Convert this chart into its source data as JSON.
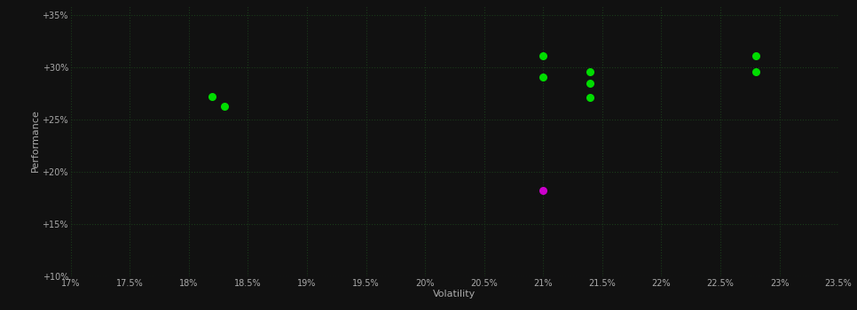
{
  "background_color": "#111111",
  "plot_bg_color": "#111111",
  "grid_color": "#1a3a1a",
  "text_color": "#aaaaaa",
  "xlabel": "Volatility",
  "ylabel": "Performance",
  "xlim": [
    0.17,
    0.235
  ],
  "ylim": [
    0.1,
    0.36
  ],
  "xticks": [
    0.17,
    0.175,
    0.18,
    0.185,
    0.19,
    0.195,
    0.2,
    0.205,
    0.21,
    0.215,
    0.22,
    0.225,
    0.23,
    0.235
  ],
  "yticks": [
    0.1,
    0.15,
    0.2,
    0.25,
    0.3,
    0.35
  ],
  "xtick_labels": [
    "17%",
    "17.5%",
    "18%",
    "18.5%",
    "19%",
    "19.5%",
    "20%",
    "20.5%",
    "21%",
    "21.5%",
    "22%",
    "22.5%",
    "23%",
    "23.5%"
  ],
  "ytick_labels": [
    "+10%",
    "+15%",
    "+20%",
    "+25%",
    "+30%",
    "+35%"
  ],
  "green_points": [
    [
      0.182,
      0.272
    ],
    [
      0.183,
      0.263
    ],
    [
      0.21,
      0.311
    ],
    [
      0.21,
      0.291
    ],
    [
      0.214,
      0.296
    ],
    [
      0.214,
      0.285
    ],
    [
      0.214,
      0.271
    ],
    [
      0.228,
      0.311
    ],
    [
      0.228,
      0.296
    ]
  ],
  "magenta_points": [
    [
      0.21,
      0.182
    ]
  ],
  "point_size": 30,
  "green_color": "#00dd00",
  "magenta_color": "#cc00cc",
  "figsize": [
    9.66,
    3.5
  ],
  "dpi": 100
}
